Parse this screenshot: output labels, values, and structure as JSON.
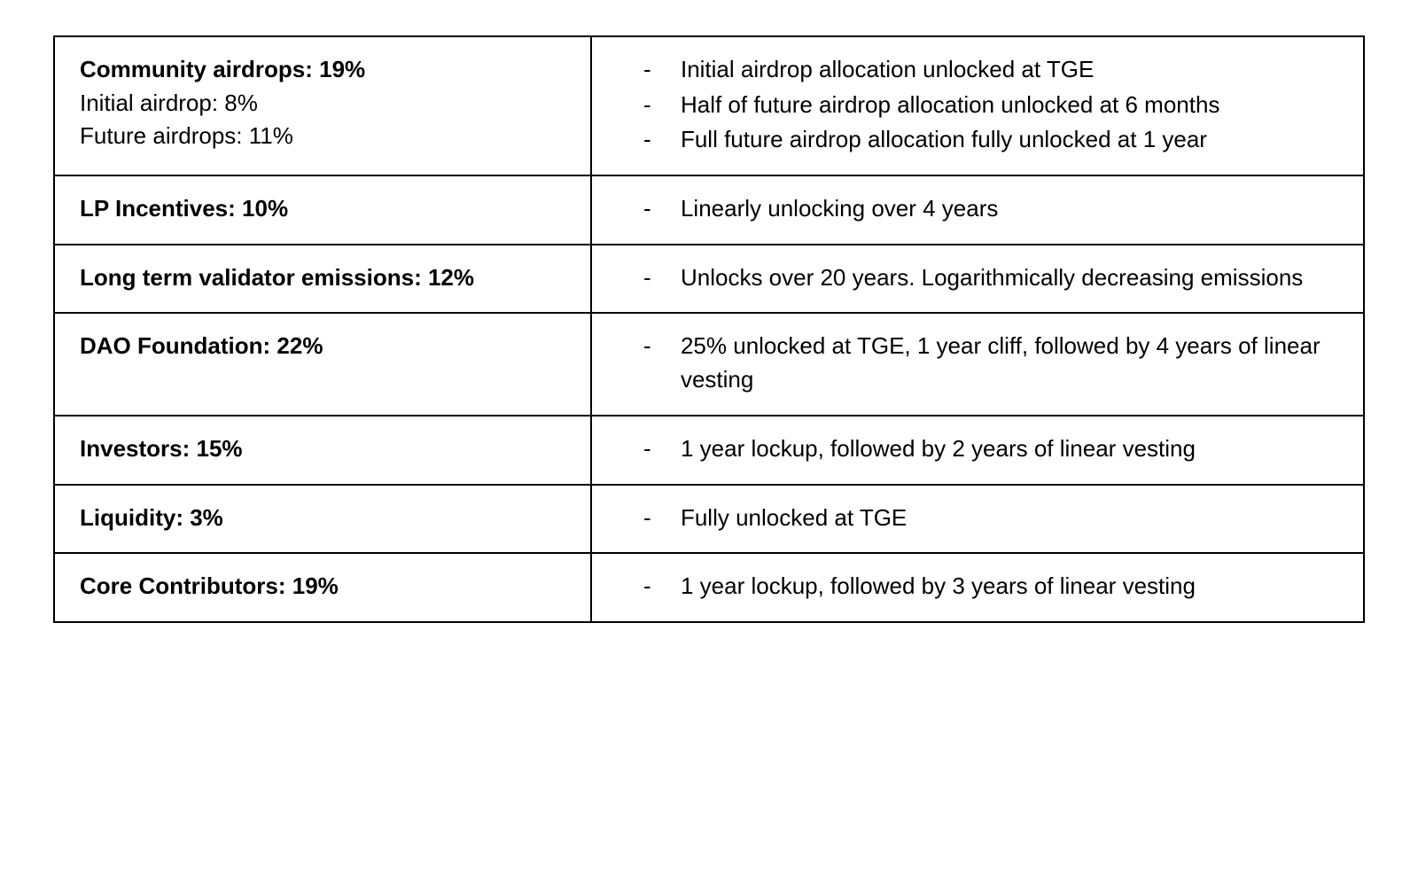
{
  "table": {
    "border_color": "#000000",
    "background_color": "#ffffff",
    "text_color": "#000000",
    "font_family": "Arial, Helvetica, sans-serif",
    "font_size_pt": 20,
    "bold_weight": 700,
    "normal_weight": 400,
    "column_widths_pct": [
      41,
      59
    ],
    "rows": [
      {
        "left": {
          "title": "Community airdrops: 19%",
          "sublines": [
            "Initial airdrop: 8%",
            "Future airdrops: 11%"
          ]
        },
        "right": {
          "bullets": [
            "Initial airdrop allocation unlocked at TGE",
            "Half of future airdrop allocation unlocked at 6 months",
            "Full future airdrop allocation fully unlocked at 1 year"
          ]
        }
      },
      {
        "left": {
          "title": "LP Incentives: 10%",
          "sublines": []
        },
        "right": {
          "bullets": [
            "Linearly unlocking over 4 years"
          ]
        }
      },
      {
        "left": {
          "title": "Long term validator emissions: 12%",
          "sublines": []
        },
        "right": {
          "bullets": [
            "Unlocks over 20 years. Logarithmically decreasing emissions"
          ]
        }
      },
      {
        "left": {
          "title": "DAO Foundation: 22%",
          "sublines": []
        },
        "right": {
          "bullets": [
            "25% unlocked at TGE, 1 year cliff, followed by 4 years of linear vesting"
          ]
        }
      },
      {
        "left": {
          "title": "Investors: 15%",
          "sublines": []
        },
        "right": {
          "bullets": [
            "1 year lockup, followed by 2 years of linear vesting"
          ]
        }
      },
      {
        "left": {
          "title": "Liquidity: 3%",
          "sublines": []
        },
        "right": {
          "bullets": [
            "Fully unlocked at TGE"
          ]
        }
      },
      {
        "left": {
          "title": "Core Contributors: 19%",
          "sublines": []
        },
        "right": {
          "bullets": [
            "1 year lockup, followed by 3 years of linear vesting"
          ]
        }
      }
    ]
  }
}
